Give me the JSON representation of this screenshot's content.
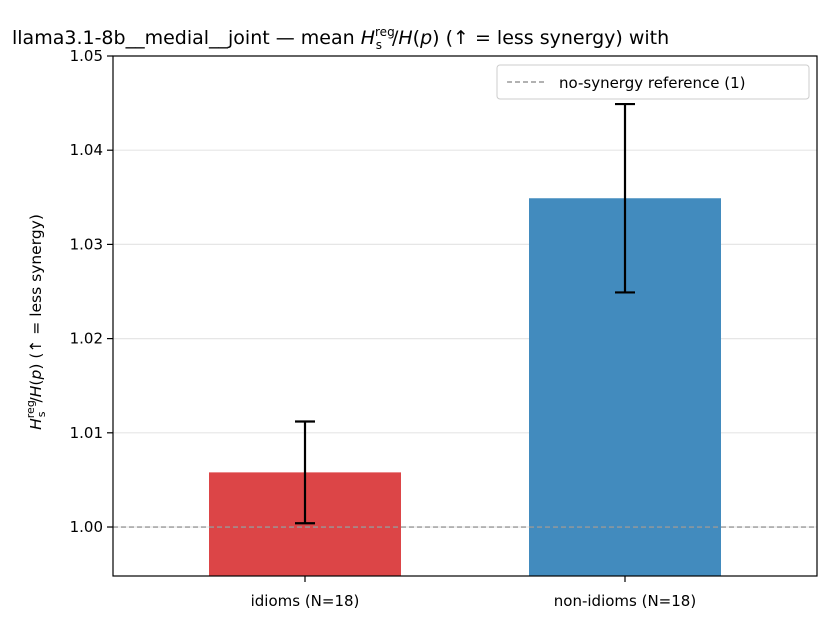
{
  "chart_data": {
    "type": "bar",
    "title": {
      "prefix": "llama3.1-8b__medial__joint — mean ",
      "var": "H",
      "sub": "s",
      "sup": "reg",
      "slash": "/",
      "den_var": "H",
      "den_open": "(",
      "den_arg": "p",
      "den_close": ")",
      "suffix": "  (↑ = less synergy) with"
    },
    "ylabel": {
      "var": "H",
      "sub": "s",
      "sup": "reg",
      "slash": "/",
      "den_var": "H",
      "den_open": "(",
      "den_arg": "p",
      "den_close": ")",
      "suffix": "  (↑ = less synergy)"
    },
    "categories": [
      "idioms (N=18)",
      "non-idioms (N=18)"
    ],
    "values": [
      1.0058,
      1.0349
    ],
    "errors": [
      0.0054,
      0.01
    ],
    "colors": [
      "#dc4547",
      "#428bbe"
    ],
    "ylim": [
      0.9948,
      1.05
    ],
    "yticks": [
      1.0,
      1.01,
      1.02,
      1.03,
      1.04,
      1.05
    ],
    "ytick_labels": [
      "1.00",
      "1.01",
      "1.02",
      "1.03",
      "1.04",
      "1.05"
    ],
    "reference_line": {
      "value": 1.0,
      "label": "no-synergy reference (1)",
      "color": "#999999"
    },
    "grid": "y",
    "legend_position": "top-right"
  }
}
